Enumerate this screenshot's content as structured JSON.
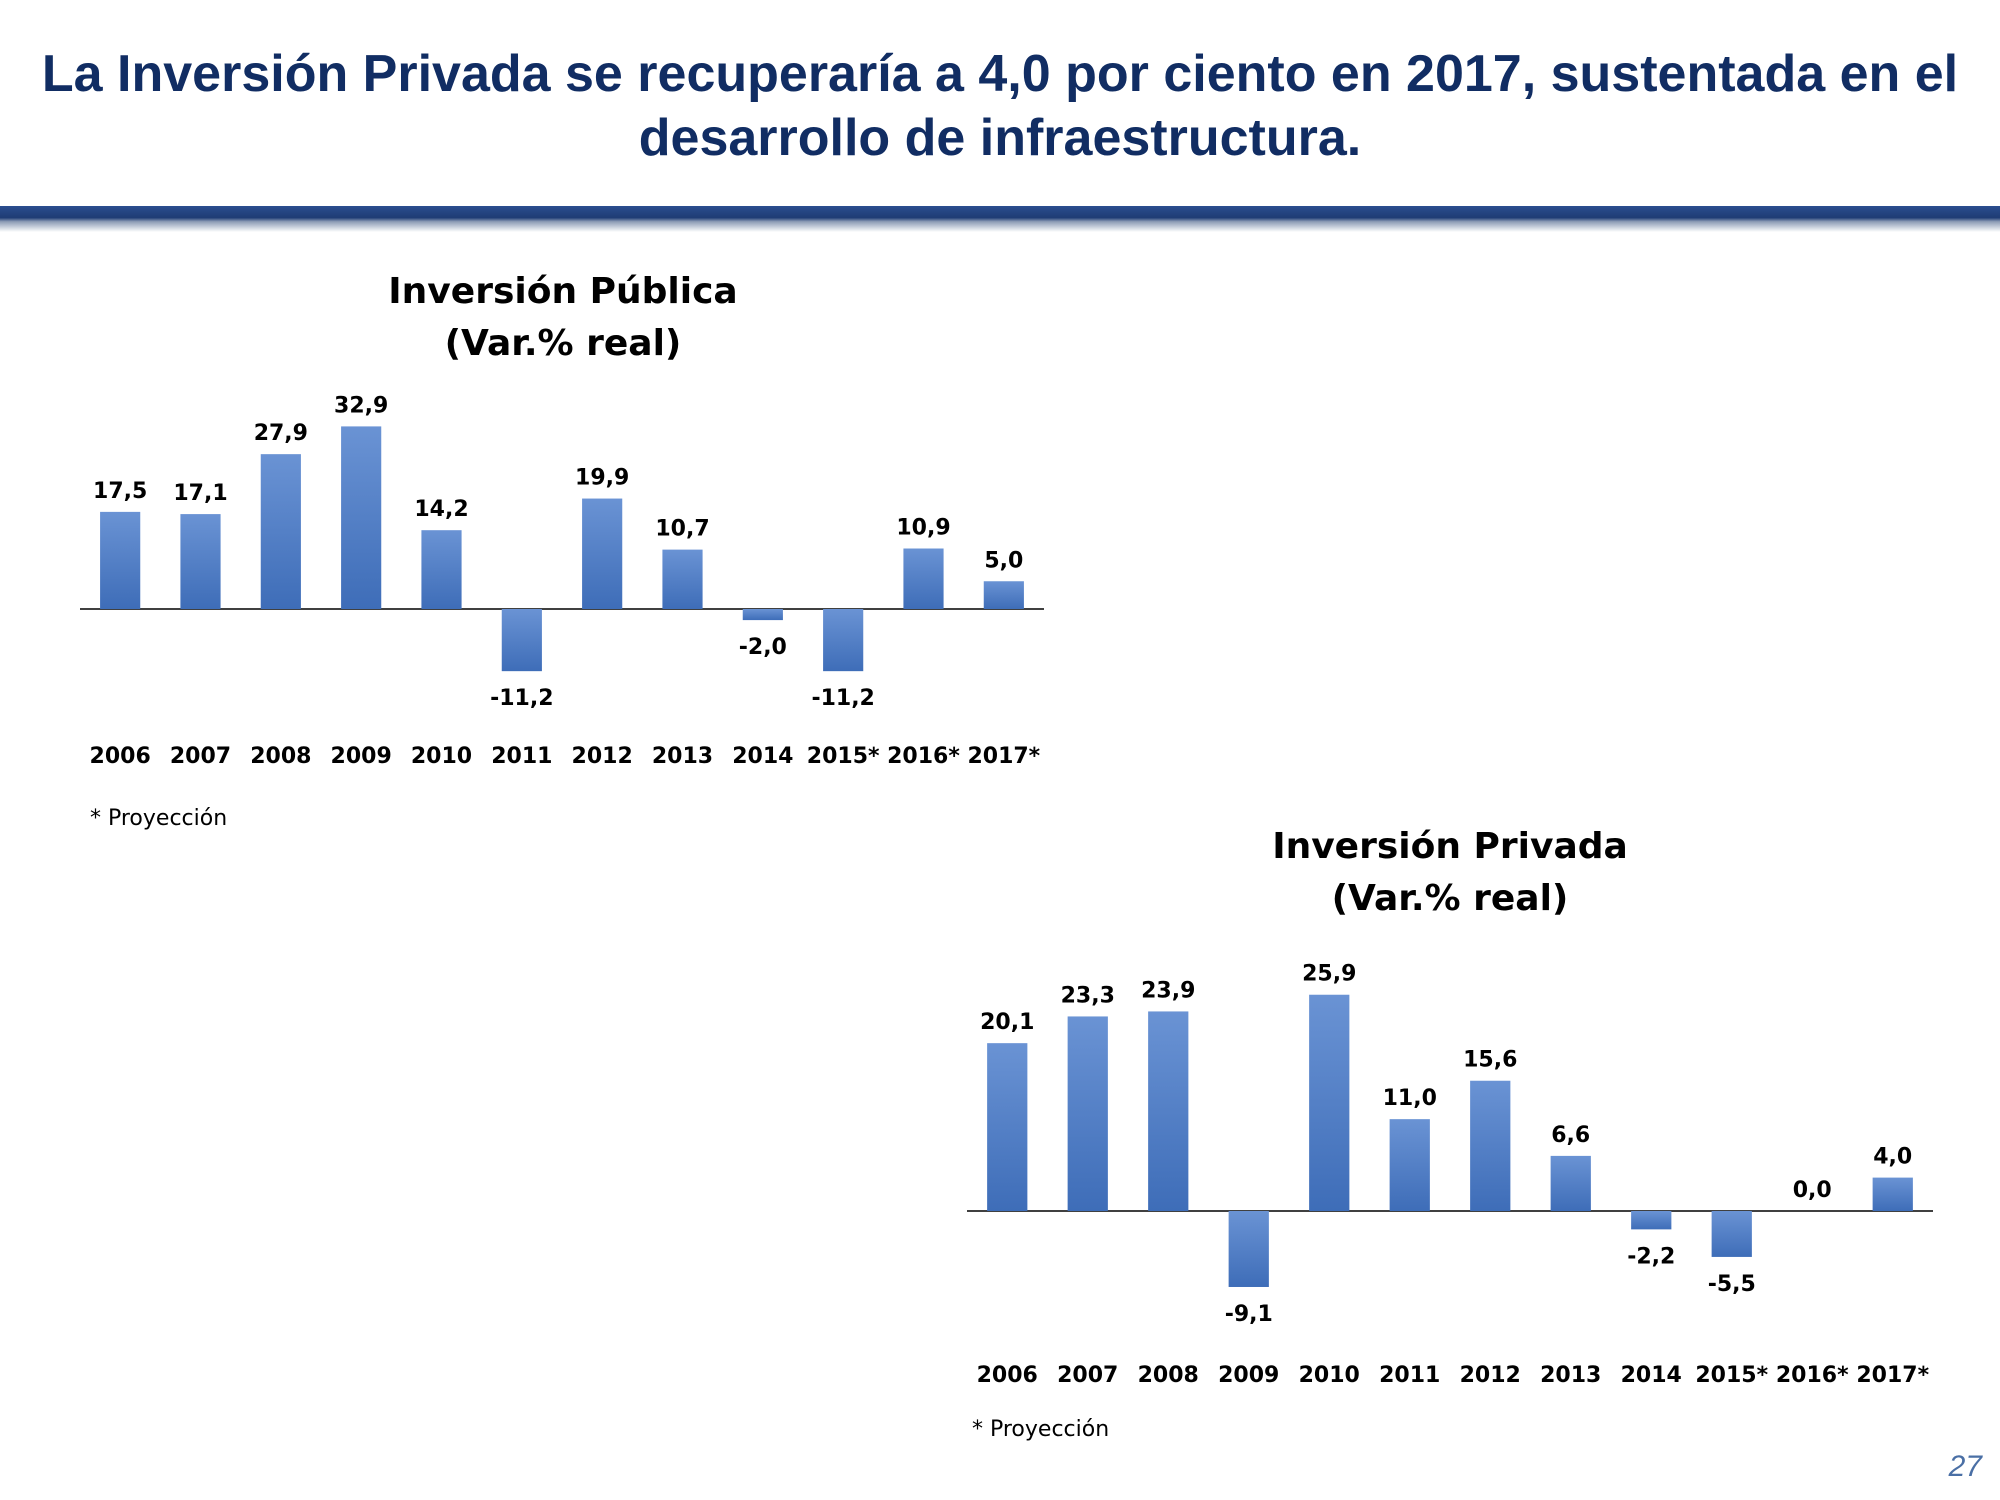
{
  "slide": {
    "title": "La Inversión Privada se recuperaría a 4,0 por ciento en 2017, sustentada en el desarrollo de infraestructura.",
    "page_number": "27",
    "colors": {
      "title": "#112D63",
      "bar_top": "#6A93D4",
      "bar_bottom": "#3E6DB8",
      "rule": "#1F3C74"
    }
  },
  "chart_data": [
    {
      "type": "bar",
      "title": [
        "Inversión Pública",
        "(Var.% real)"
      ],
      "categories": [
        "2006",
        "2007",
        "2008",
        "2009",
        "2010",
        "2011",
        "2012",
        "2013",
        "2014",
        "2015*",
        "2016*",
        "2017*"
      ],
      "values": [
        17.5,
        17.1,
        27.9,
        32.9,
        14.2,
        -11.2,
        19.9,
        10.7,
        -2.0,
        -11.2,
        10.9,
        5.0
      ],
      "value_labels": [
        "17,5",
        "17,1",
        "27,9",
        "32,9",
        "14,2",
        "-11,2",
        "19,9",
        "10,7",
        "-2,0",
        "-11,2",
        "10,9",
        "5,0"
      ],
      "note": "* Proyección",
      "xlabel": "",
      "ylabel": "",
      "grid": false,
      "legend": "none"
    },
    {
      "type": "bar",
      "title": [
        "Inversión Privada",
        "(Var.% real)"
      ],
      "categories": [
        "2006",
        "2007",
        "2008",
        "2009",
        "2010",
        "2011",
        "2012",
        "2013",
        "2014",
        "2015*",
        "2016*",
        "2017*"
      ],
      "values": [
        20.1,
        23.3,
        23.9,
        -9.1,
        25.9,
        11.0,
        15.6,
        6.6,
        -2.2,
        -5.5,
        0.0,
        4.0
      ],
      "value_labels": [
        "20,1",
        "23,3",
        "23,9",
        "-9,1",
        "25,9",
        "11,0",
        "15,6",
        "6,6",
        "-2,2",
        "-5,5",
        "0,0",
        "4,0"
      ],
      "note": "* Proyección",
      "xlabel": "",
      "ylabel": "",
      "grid": false,
      "legend": "none"
    }
  ]
}
